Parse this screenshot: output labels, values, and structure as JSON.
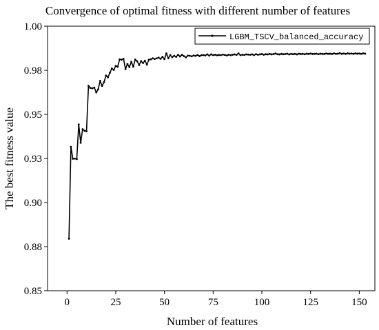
{
  "chart_data": {
    "type": "line",
    "title": "Convergence of optimal fitness with different number of features",
    "xlabel": "Number of features",
    "ylabel": "The best fitness value",
    "xlim": [
      -10,
      158
    ],
    "ylim": [
      0.85,
      1.0
    ],
    "xticks": [
      0,
      25,
      50,
      75,
      100,
      125,
      150
    ],
    "yticks": [
      0.85,
      0.875,
      0.9,
      0.925,
      0.95,
      0.975,
      1.0
    ],
    "ytick_labels": [
      "0.85",
      "0.88",
      "0.90",
      "0.93",
      "0.95",
      "0.98",
      "1.00"
    ],
    "legend_position": "top-right",
    "grid": false,
    "series": [
      {
        "name": "LGBM_TSCV_balanced_accuracy",
        "color": "#000000",
        "marker": "dot",
        "x": [
          1,
          2,
          3,
          4,
          5,
          6,
          7,
          8,
          9,
          10,
          11,
          12,
          13,
          14,
          15,
          16,
          17,
          18,
          19,
          20,
          21,
          22,
          23,
          24,
          25,
          26,
          27,
          28,
          29,
          30,
          31,
          32,
          33,
          34,
          35,
          36,
          37,
          38,
          39,
          40,
          41,
          42,
          43,
          44,
          45,
          46,
          47,
          48,
          49,
          50,
          51,
          52,
          53,
          54,
          55,
          56,
          57,
          58,
          59,
          60,
          61,
          62,
          63,
          64,
          65,
          66,
          67,
          68,
          69,
          70,
          71,
          72,
          73,
          74,
          75,
          76,
          77,
          78,
          79,
          80,
          81,
          82,
          83,
          84,
          85,
          86,
          87,
          88,
          89,
          90,
          91,
          92,
          93,
          94,
          95,
          96,
          97,
          98,
          99,
          100,
          101,
          102,
          103,
          104,
          105,
          106,
          107,
          108,
          109,
          110,
          111,
          112,
          113,
          114,
          115,
          116,
          117,
          118,
          119,
          120,
          121,
          122,
          123,
          124,
          125,
          126,
          127,
          128,
          129,
          130,
          131,
          132,
          133,
          134,
          135,
          136,
          137,
          138,
          139,
          140,
          141,
          142,
          143,
          144,
          145,
          146,
          147,
          148,
          149,
          150,
          151,
          152,
          153
        ],
        "y": [
          0.8795,
          0.9316,
          0.9248,
          0.9249,
          0.9246,
          0.9443,
          0.9339,
          0.9416,
          0.9407,
          0.9405,
          0.9662,
          0.965,
          0.9648,
          0.9652,
          0.9624,
          0.9642,
          0.969,
          0.9661,
          0.9683,
          0.972,
          0.971,
          0.9736,
          0.976,
          0.9752,
          0.9775,
          0.977,
          0.9812,
          0.981,
          0.9815,
          0.9757,
          0.9786,
          0.9768,
          0.9798,
          0.977,
          0.9811,
          0.9801,
          0.978,
          0.9802,
          0.9791,
          0.9804,
          0.9782,
          0.981,
          0.9812,
          0.9818,
          0.9814,
          0.9818,
          0.9822,
          0.9815,
          0.9826,
          0.9813,
          0.9846,
          0.9818,
          0.9836,
          0.9824,
          0.9832,
          0.9826,
          0.9838,
          0.9828,
          0.9838,
          0.983,
          0.9823,
          0.9833,
          0.9832,
          0.9829,
          0.9834,
          0.9831,
          0.9837,
          0.983,
          0.9836,
          0.9836,
          0.9834,
          0.984,
          0.9833,
          0.984,
          0.9836,
          0.9838,
          0.9835,
          0.9837,
          0.9836,
          0.9839,
          0.9837,
          0.9834,
          0.9838,
          0.9836,
          0.9838,
          0.984,
          0.9837,
          0.9846,
          0.9836,
          0.9838,
          0.9837,
          0.984,
          0.9839,
          0.9838,
          0.984,
          0.9836,
          0.9841,
          0.9838,
          0.984,
          0.9842,
          0.9838,
          0.9841,
          0.984,
          0.9843,
          0.984,
          0.9842,
          0.9845,
          0.9841,
          0.984,
          0.9843,
          0.9841,
          0.9842,
          0.9844,
          0.984,
          0.9843,
          0.9841,
          0.9843,
          0.984,
          0.9844,
          0.9842,
          0.9843,
          0.9841,
          0.9844,
          0.9842,
          0.9845,
          0.9842,
          0.9843,
          0.9844,
          0.9841,
          0.9844,
          0.9843,
          0.9842,
          0.9845,
          0.9843,
          0.9844,
          0.9842,
          0.9846,
          0.9843,
          0.9844,
          0.9847,
          0.9843,
          0.9845,
          0.9843,
          0.9846,
          0.9844,
          0.9845,
          0.9843,
          0.9846,
          0.9844,
          0.9845,
          0.9843,
          0.9846,
          0.9844
        ]
      }
    ]
  }
}
